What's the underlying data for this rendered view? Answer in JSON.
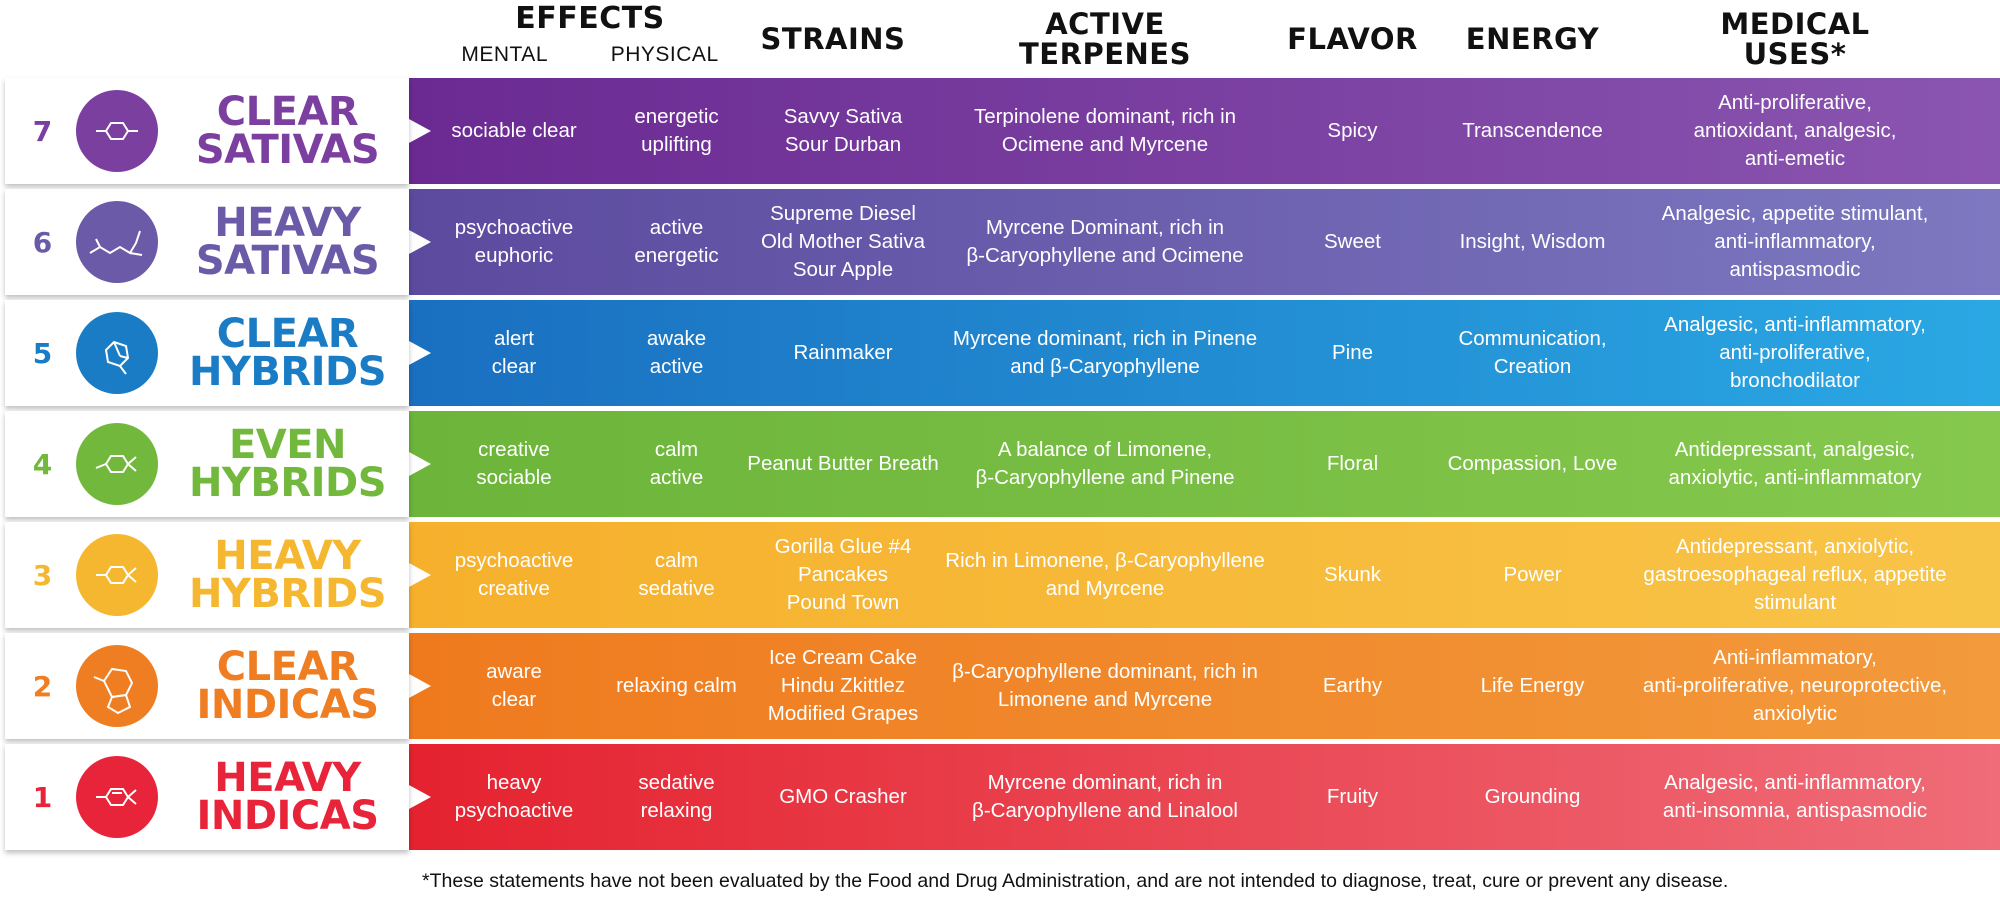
{
  "header": {
    "effects": "EFFECTS",
    "mental": "MENTAL",
    "physical": "PHYSICAL",
    "strains": "STRAINS",
    "active_terpenes_1": "ACTIVE",
    "active_terpenes_2": "TERPENES",
    "flavor": "FLAVOR",
    "energy": "ENERGY",
    "medical_1": "MEDICAL",
    "medical_2": "USES*"
  },
  "rows": [
    {
      "rank": "7",
      "name_1": "CLEAR",
      "name_2": "SATIVAS",
      "mental": "sociable clear",
      "physical": "energetic\nuplifting",
      "strains": "Savvy Sativa\nSour Durban",
      "terpenes": "Terpinolene dominant, rich in\nOcimene and Myrcene",
      "flavor": "Spicy",
      "energy": "Transcendence",
      "medical": "Anti-proliferative,\nantioxidant, analgesic,\nanti-emetic",
      "color": "#7b3fa0",
      "grad_start": "#6a2a92",
      "grad_end": "#8a55b0",
      "icon": "molecule-icon"
    },
    {
      "rank": "6",
      "name_1": "HEAVY",
      "name_2": "SATIVAS",
      "mental": "psychoactive\neuphoric",
      "physical": "active\nenergetic",
      "strains": "Supreme Diesel\nOld Mother Sativa\nSour Apple",
      "terpenes": "Myrcene Dominant, rich in\nβ-Caryophyllene and Ocimene",
      "flavor": "Sweet",
      "energy": "Insight, Wisdom",
      "medical": "Analgesic, appetite stimulant,\nanti-inflammatory,\nantispasmodic",
      "color": "#6a5aa8",
      "grad_start": "#5c4a9e",
      "grad_end": "#7d78c0",
      "icon": "molecule-icon"
    },
    {
      "rank": "5",
      "name_1": "CLEAR",
      "name_2": "HYBRIDS",
      "mental": "alert\nclear",
      "physical": "awake\nactive",
      "strains": "Rainmaker",
      "terpenes": "Myrcene dominant, rich in Pinene\nand β-Caryophyllene",
      "flavor": "Pine",
      "energy": "Communication,\nCreation",
      "medical": "Analgesic, anti-inflammatory,\nanti-proliferative,\nbronchodilator",
      "color": "#1a7cc4",
      "grad_start": "#1a6fc0",
      "grad_end": "#2aa8e4",
      "icon": "molecule-icon"
    },
    {
      "rank": "4",
      "name_1": "EVEN",
      "name_2": "HYBRIDS",
      "mental": "creative\nsociable",
      "physical": "calm\nactive",
      "strains": "Peanut Butter Breath",
      "terpenes": "A balance of Limonene,\nβ-Caryophyllene and Pinene",
      "flavor": "Floral",
      "energy": "Compassion, Love",
      "medical": "Antidepressant, analgesic,\nanxiolytic, anti-inflammatory",
      "color": "#72b83c",
      "grad_start": "#6cb43a",
      "grad_end": "#86c84e",
      "icon": "molecule-icon"
    },
    {
      "rank": "3",
      "name_1": "HEAVY",
      "name_2": "HYBRIDS",
      "mental": "psychoactive\ncreative",
      "physical": "calm\nsedative",
      "strains": "Gorilla Glue #4\nPancakes\nPound Town",
      "terpenes": "Rich in Limonene, β-Caryophyllene\nand Myrcene",
      "flavor": "Skunk",
      "energy": "Power",
      "medical": "Antidepressant, anxiolytic,\ngastroesophageal reflux, appetite\nstimulant",
      "color": "#f5b730",
      "grad_start": "#f6b02c",
      "grad_end": "#f8c448",
      "icon": "molecule-icon"
    },
    {
      "rank": "2",
      "name_1": "CLEAR",
      "name_2": "INDICAS",
      "mental": "aware\nclear",
      "physical": "relaxing calm",
      "strains": "Ice Cream Cake\nHindu Zkittlez\nModified Grapes",
      "terpenes": "β-Caryophyllene dominant, rich in\nLimonene and Myrcene",
      "flavor": "Earthy",
      "energy": "Life Energy",
      "medical": "Anti-inflammatory,\nanti-proliferative, neuroprotective,\nanxiolytic",
      "color": "#ef7d22",
      "grad_start": "#ef7a1e",
      "grad_end": "#f29a3c",
      "icon": "molecule-icon"
    },
    {
      "rank": "1",
      "name_1": "HEAVY",
      "name_2": "INDICAS",
      "mental": "heavy\npsychoactive",
      "physical": "sedative\nrelaxing",
      "strains": "GMO Crasher",
      "terpenes": "Myrcene dominant, rich in\nβ-Caryophyllene and Linalool",
      "flavor": "Fruity",
      "energy": "Grounding",
      "medical": "Analgesic, anti-inflammatory,\nanti-insomnia, antispasmodic",
      "color": "#e8243a",
      "grad_start": "#e5222f",
      "grad_end": "#ef6c78",
      "icon": "molecule-icon"
    }
  ],
  "footnote": "*These statements have not been evaluated by the Food and Drug Administration, and are not intended to diagnose, treat, cure or prevent any disease."
}
